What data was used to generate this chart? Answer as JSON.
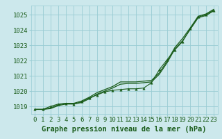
{
  "title": "Graphe pression niveau de la mer (hPa)",
  "xlabel": "Graphe pression niveau de la mer (hPa)",
  "hours": [
    0,
    1,
    2,
    3,
    4,
    5,
    6,
    7,
    8,
    9,
    10,
    11,
    12,
    13,
    14,
    15,
    16,
    17,
    18,
    19,
    20,
    21,
    22,
    23
  ],
  "line_solid1": [
    1018.8,
    1018.8,
    1018.85,
    1019.05,
    1019.15,
    1019.15,
    1019.25,
    1019.5,
    1019.8,
    1020.0,
    1020.2,
    1020.45,
    1020.5,
    1020.5,
    1020.55,
    1020.6,
    1021.1,
    1021.85,
    1022.75,
    1023.3,
    1024.05,
    1024.8,
    1024.95,
    1025.25
  ],
  "line_solid2": [
    1018.8,
    1018.8,
    1018.9,
    1019.1,
    1019.2,
    1019.2,
    1019.35,
    1019.6,
    1019.9,
    1020.1,
    1020.3,
    1020.6,
    1020.6,
    1020.6,
    1020.65,
    1020.7,
    1021.2,
    1021.95,
    1022.85,
    1023.45,
    1024.15,
    1024.9,
    1025.05,
    1025.35
  ],
  "line_dotted": [
    1018.8,
    1018.8,
    1019.0,
    1019.15,
    1019.2,
    1019.15,
    1019.3,
    1019.55,
    1019.75,
    1019.95,
    1020.05,
    1020.1,
    1020.15,
    1020.15,
    1020.2,
    1020.55,
    1021.4,
    1022.05,
    1022.7,
    1023.25,
    1024.1,
    1024.85,
    1025.0,
    1025.3
  ],
  "ylim": [
    1018.5,
    1025.6
  ],
  "yticks": [
    1019,
    1020,
    1021,
    1022,
    1023,
    1024,
    1025
  ],
  "bg_color": "#cce8ec",
  "grid_color": "#99ccd4",
  "line_color": "#1a5c1a",
  "text_color": "#1a5c1a",
  "title_fontsize": 7.5,
  "tick_fontsize": 6.5
}
